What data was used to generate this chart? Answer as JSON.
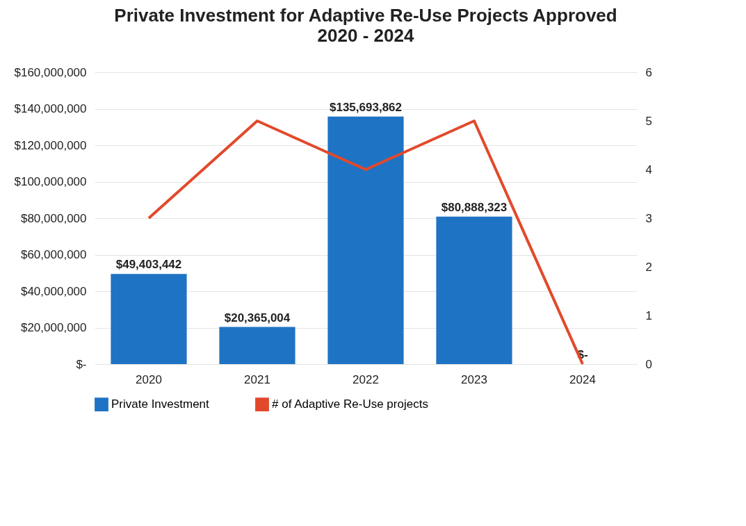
{
  "chart_data": {
    "type": "bar",
    "title": "Private Investment for Adaptive Re-Use Projects Approved",
    "subtitle": "2020 - 2024",
    "categories": [
      "2020",
      "2021",
      "2022",
      "2023",
      "2024"
    ],
    "series": [
      {
        "name": "Private Investment",
        "color": "#1f73c4",
        "values": [
          49403442,
          20365004,
          135693862,
          80888323,
          0
        ],
        "value_labels": [
          "$49,403,442",
          "$20,365,004",
          "$135,693,862",
          "$80,888,323",
          "$-"
        ]
      },
      {
        "name": "# of Adaptive Re-Use projects",
        "type": "line",
        "axis": "y2",
        "color": "#e2492b",
        "values": [
          3,
          5,
          4,
          5,
          0
        ]
      }
    ],
    "ylim": [
      0,
      160000000
    ],
    "yticks": [
      {
        "value": 0,
        "label": "$-"
      },
      {
        "value": 20000000,
        "label": "$20,000,000"
      },
      {
        "value": 40000000,
        "label": "$40,000,000"
      },
      {
        "value": 60000000,
        "label": "$60,000,000"
      },
      {
        "value": 80000000,
        "label": "$80,000,000"
      },
      {
        "value": 100000000,
        "label": "$100,000,000"
      },
      {
        "value": 120000000,
        "label": "$120,000,000"
      },
      {
        "value": 140000000,
        "label": "$140,000,000"
      },
      {
        "value": 160000000,
        "label": "$160,000,000"
      }
    ],
    "y2lim": [
      0,
      6
    ],
    "y2ticks": [
      0,
      1,
      2,
      3,
      4,
      5,
      6
    ],
    "grid": "y",
    "legend": "bottom"
  }
}
